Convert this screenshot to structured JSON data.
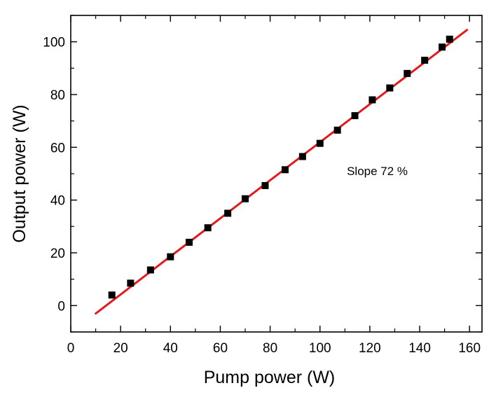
{
  "chart_data": {
    "type": "scatter",
    "xlabel": "Pump power (W)",
    "ylabel": "Output power (W)",
    "xlim": [
      0,
      165
    ],
    "ylim": [
      -10,
      110
    ],
    "x_ticks": [
      0,
      20,
      40,
      60,
      80,
      100,
      120,
      140,
      160
    ],
    "y_ticks": [
      0,
      20,
      40,
      60,
      80,
      100
    ],
    "x_tick_labels": [
      "0",
      "20",
      "40",
      "60",
      "80",
      "100",
      "120",
      "140",
      "160"
    ],
    "y_tick_labels": [
      "0",
      "20",
      "40",
      "60",
      "80",
      "100"
    ],
    "grid": false,
    "series": [
      {
        "type": "scatter",
        "marker": "square",
        "color": "#000000",
        "points": [
          [
            16.5,
            4
          ],
          [
            24,
            8.5
          ],
          [
            32,
            13.5
          ],
          [
            40,
            18.5
          ],
          [
            47.5,
            24
          ],
          [
            55,
            29.5
          ],
          [
            63,
            35
          ],
          [
            70,
            40.5
          ],
          [
            78,
            45.5
          ],
          [
            86,
            51.5
          ],
          [
            93,
            56.5
          ],
          [
            100,
            61.5
          ],
          [
            107,
            66.5
          ],
          [
            114,
            72
          ],
          [
            121,
            78
          ],
          [
            128,
            82.5
          ],
          [
            135,
            88
          ],
          [
            142,
            93
          ],
          [
            149,
            98
          ],
          [
            152,
            101
          ]
        ]
      },
      {
        "type": "line",
        "color": "#e31a1c",
        "points": [
          [
            10,
            -3
          ],
          [
            159,
            104.5
          ]
        ]
      }
    ],
    "annotations": [
      {
        "text": "Slope 72 %",
        "x": 123,
        "y": 49.5
      }
    ]
  }
}
